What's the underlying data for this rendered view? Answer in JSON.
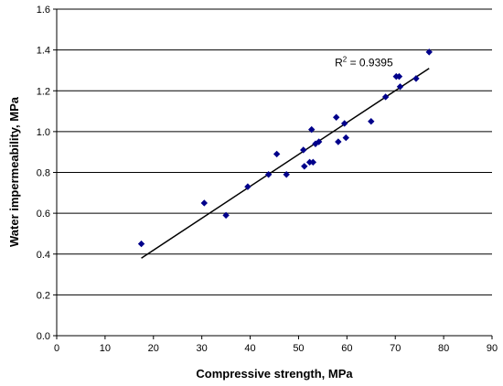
{
  "chart_data": {
    "type": "scatter",
    "xlabel": "Compressive strength, MPa",
    "ylabel": "Water impermeability, MPa",
    "xlim": [
      0,
      90
    ],
    "ylim": [
      0,
      1.6
    ],
    "x_ticks": [
      "0",
      "10",
      "20",
      "30",
      "40",
      "50",
      "60",
      "70",
      "80",
      "90"
    ],
    "y_ticks": [
      "0.0",
      "0.2",
      "0.4",
      "0.6",
      "0.8",
      "1.0",
      "1.2",
      "1.4",
      "1.6"
    ],
    "grid": "horizontal",
    "marker_color": "#00008b",
    "points": [
      {
        "x": 17.5,
        "y": 0.45
      },
      {
        "x": 30.5,
        "y": 0.65
      },
      {
        "x": 35,
        "y": 0.59
      },
      {
        "x": 39.5,
        "y": 0.73
      },
      {
        "x": 43.8,
        "y": 0.79
      },
      {
        "x": 45.5,
        "y": 0.89
      },
      {
        "x": 47.5,
        "y": 0.79
      },
      {
        "x": 51,
        "y": 0.91
      },
      {
        "x": 51.2,
        "y": 0.83
      },
      {
        "x": 52.3,
        "y": 0.85
      },
      {
        "x": 52.7,
        "y": 1.01
      },
      {
        "x": 53,
        "y": 0.85
      },
      {
        "x": 53.5,
        "y": 0.94
      },
      {
        "x": 54.2,
        "y": 0.95
      },
      {
        "x": 57.8,
        "y": 1.07
      },
      {
        "x": 58.2,
        "y": 0.95
      },
      {
        "x": 59.5,
        "y": 1.04
      },
      {
        "x": 59.8,
        "y": 0.97
      },
      {
        "x": 65,
        "y": 1.05
      },
      {
        "x": 68,
        "y": 1.17
      },
      {
        "x": 70.2,
        "y": 1.27
      },
      {
        "x": 70.8,
        "y": 1.27
      },
      {
        "x": 71,
        "y": 1.22
      },
      {
        "x": 74.3,
        "y": 1.26
      },
      {
        "x": 77,
        "y": 1.39
      }
    ],
    "trendline": {
      "x": [
        17.5,
        77
      ],
      "y": [
        0.38,
        1.31
      ]
    },
    "annotation": {
      "base": "R",
      "sup": "2",
      "rest": " = 0.9395",
      "x": 57.5,
      "y": 1.32
    }
  }
}
